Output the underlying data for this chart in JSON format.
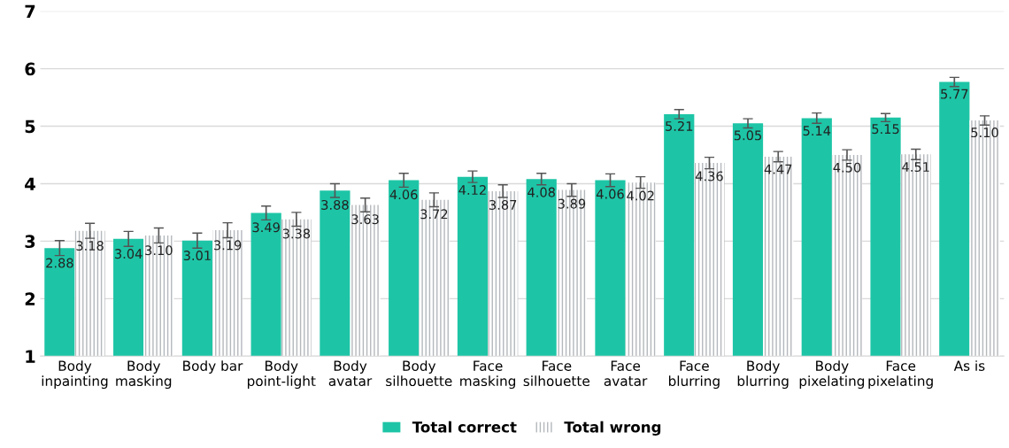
{
  "chart_data": {
    "type": "bar",
    "categories": [
      "Body\ninpainting",
      "Body\nmasking",
      "Body bar",
      "Body\npoint-light",
      "Body\navatar",
      "Body\nsilhouette",
      "Face\nmasking",
      "Face\nsilhouette",
      "Face\navatar",
      "Face\nblurring",
      "Body\nblurring",
      "Body\npixelating",
      "Face\npixelating",
      "As is"
    ],
    "series": [
      {
        "name": "Total correct",
        "color": "#1dc5a6",
        "values": [
          2.88,
          3.04,
          3.01,
          3.49,
          3.88,
          4.06,
          4.12,
          4.08,
          4.06,
          5.21,
          5.05,
          5.14,
          5.15,
          5.77
        ],
        "errors": [
          0.13,
          0.13,
          0.13,
          0.12,
          0.12,
          0.12,
          0.1,
          0.1,
          0.11,
          0.08,
          0.08,
          0.09,
          0.07,
          0.08
        ],
        "value_labels": [
          "2.88",
          "3.04",
          "3.01",
          "3.49",
          "3.88",
          "4.06",
          "4.12",
          "4.08",
          "4.06",
          "5.21",
          "5.05",
          "5.14",
          "5.15",
          "5.77"
        ]
      },
      {
        "name": "Total wrong",
        "color": "#b4b8bc",
        "values": [
          3.18,
          3.1,
          3.19,
          3.38,
          3.63,
          3.72,
          3.87,
          3.89,
          4.02,
          4.36,
          4.47,
          4.5,
          4.51,
          5.1
        ],
        "errors": [
          0.13,
          0.13,
          0.13,
          0.12,
          0.12,
          0.12,
          0.11,
          0.11,
          0.1,
          0.1,
          0.09,
          0.09,
          0.09,
          0.08
        ],
        "value_labels": [
          "3.18",
          "3.10",
          "3.19",
          "3.38",
          "3.63",
          "3.72",
          "3.87",
          "3.89",
          "4.02",
          "4.36",
          "4.47",
          "4.50",
          "4.51",
          "5.10"
        ]
      }
    ],
    "ylim": [
      1,
      7
    ],
    "yticks": [
      1,
      2,
      3,
      4,
      5,
      6,
      7
    ],
    "grid": "y",
    "legend": "bottom"
  }
}
